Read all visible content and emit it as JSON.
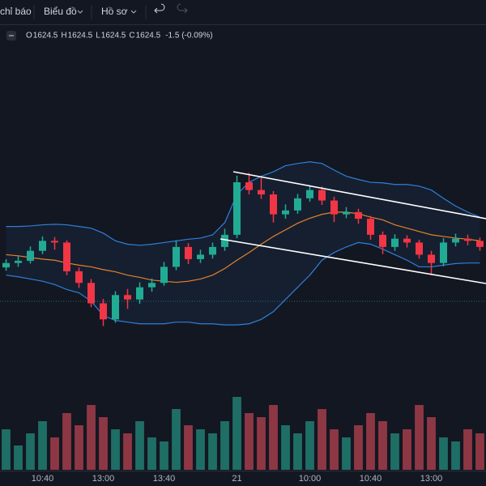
{
  "toolbar": {
    "items": [
      "chỉ báo",
      "Biểu đồ",
      "Hồ sơ"
    ]
  },
  "chart_data": {
    "type": "candlestick",
    "legend": [
      {
        "label": "O",
        "value": 1624.5
      },
      {
        "label": "H",
        "value": 1624.5
      },
      {
        "label": "L",
        "value": 1624.5
      },
      {
        "label": "C",
        "value": 1624.5
      }
    ],
    "change": "-1.5 (-0.09%)",
    "up_color": "#22ab94",
    "down_color": "#f23645",
    "volume_up_color": "#1f6e66",
    "volume_down_color": "#8e3744",
    "band_color": "#2f7fd8",
    "ma_color": "#e5822a",
    "ylim": [
      1611.9,
      1650
    ],
    "categories": [
      null,
      null,
      null,
      "10:40",
      null,
      null,
      null,
      null,
      "13:00",
      null,
      null,
      null,
      null,
      "13:40",
      null,
      null,
      null,
      null,
      null,
      "21",
      null,
      null,
      null,
      null,
      null,
      "10:00",
      null,
      null,
      null,
      null,
      "10:40",
      null,
      null,
      null,
      null,
      "13:00",
      null,
      null,
      null,
      null
    ],
    "ohlc": [
      [
        1628.0,
        1629.5,
        1627.4,
        1628.8
      ],
      [
        1628.8,
        1630.0,
        1628.1,
        1629.2
      ],
      [
        1629.2,
        1631.8,
        1628.7,
        1631.0
      ],
      [
        1631.0,
        1633.6,
        1630.4,
        1632.8
      ],
      [
        1632.8,
        1633.5,
        1631.2,
        1632.5
      ],
      [
        1632.5,
        1632.9,
        1626.6,
        1627.3
      ],
      [
        1627.3,
        1628.0,
        1624.3,
        1625.2
      ],
      [
        1625.2,
        1625.9,
        1620.8,
        1621.5
      ],
      [
        1621.5,
        1622.3,
        1617.4,
        1618.6
      ],
      [
        1618.6,
        1623.7,
        1618.0,
        1623.0
      ],
      [
        1623.0,
        1624.1,
        1620.5,
        1622.2
      ],
      [
        1622.2,
        1625.3,
        1621.4,
        1624.4
      ],
      [
        1624.4,
        1626.0,
        1623.6,
        1625.2
      ],
      [
        1625.2,
        1629.0,
        1624.7,
        1628.1
      ],
      [
        1628.1,
        1632.9,
        1627.5,
        1631.7
      ],
      [
        1631.7,
        1632.4,
        1628.6,
        1629.5
      ],
      [
        1629.5,
        1631.2,
        1628.8,
        1630.3
      ],
      [
        1630.3,
        1632.5,
        1629.6,
        1631.7
      ],
      [
        1631.7,
        1635.0,
        1631.0,
        1633.9
      ],
      [
        1633.9,
        1644.6,
        1633.3,
        1643.4
      ],
      [
        1643.4,
        1645.1,
        1641.2,
        1642.0
      ],
      [
        1642.0,
        1644.3,
        1640.4,
        1641.2
      ],
      [
        1641.2,
        1641.8,
        1636.1,
        1637.6
      ],
      [
        1637.6,
        1639.4,
        1636.8,
        1638.3
      ],
      [
        1638.3,
        1641.3,
        1637.7,
        1640.5
      ],
      [
        1640.5,
        1642.9,
        1639.9,
        1642.0
      ],
      [
        1642.0,
        1642.6,
        1639.3,
        1640.1
      ],
      [
        1640.1,
        1640.8,
        1636.2,
        1637.6
      ],
      [
        1637.6,
        1638.9,
        1636.9,
        1638.0
      ],
      [
        1638.0,
        1638.6,
        1635.9,
        1636.8
      ],
      [
        1636.8,
        1637.3,
        1633.0,
        1633.9
      ],
      [
        1633.9,
        1634.5,
        1630.4,
        1631.7
      ],
      [
        1631.7,
        1634.0,
        1631.0,
        1633.2
      ],
      [
        1633.2,
        1633.8,
        1631.6,
        1632.5
      ],
      [
        1632.5,
        1633.0,
        1629.6,
        1630.3
      ],
      [
        1630.3,
        1631.0,
        1626.6,
        1628.8
      ],
      [
        1628.8,
        1633.3,
        1628.2,
        1632.5
      ],
      [
        1632.5,
        1634.1,
        1631.8,
        1633.2
      ],
      [
        1633.2,
        1633.9,
        1632.0,
        1632.8
      ],
      [
        1632.8,
        1633.4,
        1631.0,
        1631.7
      ]
    ],
    "upper": [
      1635.4,
      1635.4,
      1635.5,
      1635.7,
      1635.8,
      1635.7,
      1635.4,
      1635.1,
      1634.2,
      1632.8,
      1632.2,
      1632.0,
      1632.2,
      1632.5,
      1632.8,
      1633.1,
      1633.3,
      1633.9,
      1636.1,
      1641.2,
      1643.4,
      1644.5,
      1645.3,
      1646.4,
      1646.8,
      1647.1,
      1646.8,
      1645.6,
      1644.5,
      1643.9,
      1643.4,
      1643.3,
      1643.0,
      1643.0,
      1642.7,
      1642.0,
      1640.5,
      1639.1,
      1638.0,
      1637.1
    ],
    "lower": [
      1626.6,
      1626.3,
      1625.9,
      1625.5,
      1624.9,
      1624.0,
      1623.4,
      1621.9,
      1619.3,
      1618.4,
      1618.1,
      1617.8,
      1617.8,
      1617.8,
      1618.1,
      1618.1,
      1617.8,
      1617.8,
      1617.6,
      1617.6,
      1617.8,
      1618.6,
      1620.0,
      1622.2,
      1624.4,
      1626.6,
      1629.3,
      1630.7,
      1631.7,
      1632.5,
      1632.2,
      1631.3,
      1630.3,
      1629.3,
      1628.1,
      1628.1,
      1628.4,
      1628.7,
      1628.8,
      1628.8
    ],
    "ma": [
      1630.3,
      1630.1,
      1629.8,
      1629.5,
      1629.3,
      1628.8,
      1628.4,
      1628.1,
      1627.6,
      1627.2,
      1626.6,
      1626.2,
      1625.7,
      1625.5,
      1625.3,
      1625.5,
      1625.9,
      1626.6,
      1627.8,
      1629.3,
      1630.7,
      1632.2,
      1633.6,
      1634.8,
      1636.0,
      1636.9,
      1637.6,
      1638.0,
      1638.0,
      1637.7,
      1637.1,
      1636.6,
      1635.7,
      1635.1,
      1634.5,
      1633.9,
      1633.6,
      1633.3,
      1633.1,
      1632.8
    ],
    "volume": [
      50,
      30,
      45,
      60,
      40,
      70,
      55,
      80,
      65,
      50,
      45,
      60,
      40,
      35,
      75,
      55,
      50,
      45,
      60,
      90,
      70,
      65,
      80,
      55,
      45,
      60,
      75,
      50,
      40,
      55,
      70,
      60,
      45,
      50,
      80,
      65,
      40,
      35,
      50,
      45
    ],
    "vlim": [
      0,
      130
    ]
  }
}
